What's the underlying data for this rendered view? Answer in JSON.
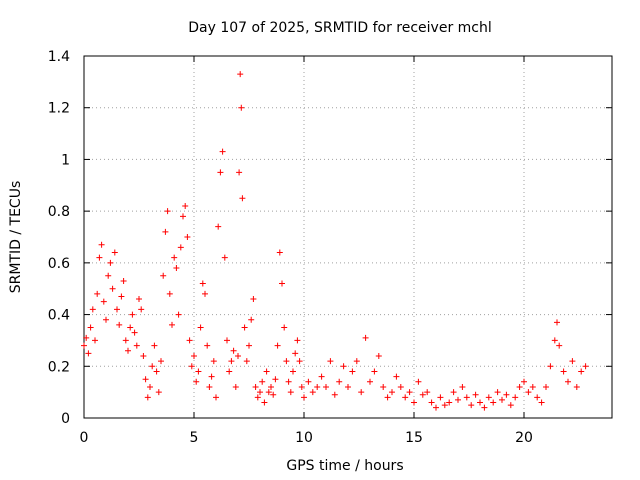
{
  "chart_data": {
    "type": "scatter",
    "title": "Day 107 of 2025, SRMTID for receiver mchl",
    "xlabel": "GPS time / hours",
    "ylabel": "SRMTID / TECUs",
    "xlim": [
      0,
      24
    ],
    "ylim": [
      0,
      1.4
    ],
    "xticks": [
      0,
      5,
      10,
      15,
      20
    ],
    "xtick_labels": [
      "0",
      "5",
      "10",
      "15",
      "20"
    ],
    "yticks": [
      0,
      0.2,
      0.4,
      0.6,
      0.8,
      1,
      1.2,
      1.4
    ],
    "ytick_labels": [
      "0",
      "0.2",
      "0.4",
      "0.6",
      "0.8",
      "1",
      "1.2",
      "1.4"
    ],
    "grid": true,
    "marker": "+",
    "color": "#ff0000",
    "series": [
      {
        "name": "SRMTID",
        "points": [
          [
            0.0,
            0.28
          ],
          [
            0.1,
            0.31
          ],
          [
            0.2,
            0.25
          ],
          [
            0.3,
            0.35
          ],
          [
            0.4,
            0.42
          ],
          [
            0.5,
            0.3
          ],
          [
            0.6,
            0.48
          ],
          [
            0.7,
            0.62
          ],
          [
            0.8,
            0.67
          ],
          [
            0.9,
            0.45
          ],
          [
            1.0,
            0.38
          ],
          [
            1.1,
            0.55
          ],
          [
            1.2,
            0.6
          ],
          [
            1.3,
            0.5
          ],
          [
            1.4,
            0.64
          ],
          [
            1.5,
            0.42
          ],
          [
            1.6,
            0.36
          ],
          [
            1.7,
            0.47
          ],
          [
            1.8,
            0.53
          ],
          [
            1.9,
            0.3
          ],
          [
            2.0,
            0.26
          ],
          [
            2.1,
            0.35
          ],
          [
            2.2,
            0.4
          ],
          [
            2.3,
            0.33
          ],
          [
            2.4,
            0.28
          ],
          [
            2.5,
            0.46
          ],
          [
            2.6,
            0.42
          ],
          [
            2.7,
            0.24
          ],
          [
            2.8,
            0.15
          ],
          [
            2.9,
            0.08
          ],
          [
            3.0,
            0.12
          ],
          [
            3.1,
            0.2
          ],
          [
            3.2,
            0.28
          ],
          [
            3.3,
            0.18
          ],
          [
            3.4,
            0.1
          ],
          [
            3.5,
            0.22
          ],
          [
            3.6,
            0.55
          ],
          [
            3.7,
            0.72
          ],
          [
            3.8,
            0.8
          ],
          [
            3.9,
            0.48
          ],
          [
            4.0,
            0.36
          ],
          [
            4.1,
            0.62
          ],
          [
            4.2,
            0.58
          ],
          [
            4.3,
            0.4
          ],
          [
            4.4,
            0.66
          ],
          [
            4.5,
            0.78
          ],
          [
            4.6,
            0.82
          ],
          [
            4.7,
            0.7
          ],
          [
            4.8,
            0.3
          ],
          [
            4.9,
            0.2
          ],
          [
            5.0,
            0.24
          ],
          [
            5.1,
            0.14
          ],
          [
            5.2,
            0.18
          ],
          [
            5.3,
            0.35
          ],
          [
            5.4,
            0.52
          ],
          [
            5.5,
            0.48
          ],
          [
            5.6,
            0.28
          ],
          [
            5.7,
            0.12
          ],
          [
            5.8,
            0.16
          ],
          [
            5.9,
            0.22
          ],
          [
            6.0,
            0.08
          ],
          [
            6.1,
            0.74
          ],
          [
            6.2,
            0.95
          ],
          [
            6.3,
            1.03
          ],
          [
            6.4,
            0.62
          ],
          [
            6.5,
            0.3
          ],
          [
            6.6,
            0.18
          ],
          [
            6.7,
            0.22
          ],
          [
            6.8,
            0.26
          ],
          [
            6.9,
            0.12
          ],
          [
            7.0,
            0.24
          ],
          [
            7.05,
            0.95
          ],
          [
            7.1,
            1.33
          ],
          [
            7.15,
            1.2
          ],
          [
            7.2,
            0.85
          ],
          [
            7.3,
            0.35
          ],
          [
            7.4,
            0.22
          ],
          [
            7.5,
            0.28
          ],
          [
            7.6,
            0.38
          ],
          [
            7.7,
            0.46
          ],
          [
            7.8,
            0.12
          ],
          [
            7.9,
            0.08
          ],
          [
            8.0,
            0.1
          ],
          [
            8.1,
            0.14
          ],
          [
            8.2,
            0.06
          ],
          [
            8.3,
            0.18
          ],
          [
            8.4,
            0.1
          ],
          [
            8.5,
            0.12
          ],
          [
            8.6,
            0.09
          ],
          [
            8.7,
            0.15
          ],
          [
            8.8,
            0.28
          ],
          [
            8.9,
            0.64
          ],
          [
            9.0,
            0.52
          ],
          [
            9.1,
            0.35
          ],
          [
            9.2,
            0.22
          ],
          [
            9.3,
            0.14
          ],
          [
            9.4,
            0.1
          ],
          [
            9.5,
            0.18
          ],
          [
            9.6,
            0.25
          ],
          [
            9.7,
            0.3
          ],
          [
            9.8,
            0.22
          ],
          [
            9.9,
            0.12
          ],
          [
            10.0,
            0.08
          ],
          [
            10.2,
            0.14
          ],
          [
            10.4,
            0.1
          ],
          [
            10.6,
            0.12
          ],
          [
            10.8,
            0.16
          ],
          [
            11.0,
            0.12
          ],
          [
            11.2,
            0.22
          ],
          [
            11.4,
            0.09
          ],
          [
            11.6,
            0.14
          ],
          [
            11.8,
            0.2
          ],
          [
            12.0,
            0.12
          ],
          [
            12.2,
            0.18
          ],
          [
            12.4,
            0.22
          ],
          [
            12.6,
            0.1
          ],
          [
            12.8,
            0.31
          ],
          [
            13.0,
            0.14
          ],
          [
            13.2,
            0.18
          ],
          [
            13.4,
            0.24
          ],
          [
            13.6,
            0.12
          ],
          [
            13.8,
            0.08
          ],
          [
            14.0,
            0.1
          ],
          [
            14.2,
            0.16
          ],
          [
            14.4,
            0.12
          ],
          [
            14.6,
            0.08
          ],
          [
            14.8,
            0.1
          ],
          [
            15.0,
            0.06
          ],
          [
            15.2,
            0.14
          ],
          [
            15.4,
            0.09
          ],
          [
            15.6,
            0.1
          ],
          [
            15.8,
            0.06
          ],
          [
            16.0,
            0.04
          ],
          [
            16.2,
            0.08
          ],
          [
            16.4,
            0.05
          ],
          [
            16.6,
            0.06
          ],
          [
            16.8,
            0.1
          ],
          [
            17.0,
            0.07
          ],
          [
            17.2,
            0.12
          ],
          [
            17.4,
            0.08
          ],
          [
            17.6,
            0.05
          ],
          [
            17.8,
            0.09
          ],
          [
            18.0,
            0.06
          ],
          [
            18.2,
            0.04
          ],
          [
            18.4,
            0.08
          ],
          [
            18.6,
            0.06
          ],
          [
            18.8,
            0.1
          ],
          [
            19.0,
            0.07
          ],
          [
            19.2,
            0.09
          ],
          [
            19.4,
            0.05
          ],
          [
            19.6,
            0.08
          ],
          [
            19.8,
            0.12
          ],
          [
            20.0,
            0.14
          ],
          [
            20.2,
            0.1
          ],
          [
            20.4,
            0.12
          ],
          [
            20.6,
            0.08
          ],
          [
            20.8,
            0.06
          ],
          [
            21.0,
            0.12
          ],
          [
            21.2,
            0.2
          ],
          [
            21.4,
            0.3
          ],
          [
            21.5,
            0.37
          ],
          [
            21.6,
            0.28
          ],
          [
            21.8,
            0.18
          ],
          [
            22.0,
            0.14
          ],
          [
            22.2,
            0.22
          ],
          [
            22.4,
            0.12
          ],
          [
            22.6,
            0.18
          ],
          [
            22.8,
            0.2
          ]
        ]
      }
    ]
  }
}
